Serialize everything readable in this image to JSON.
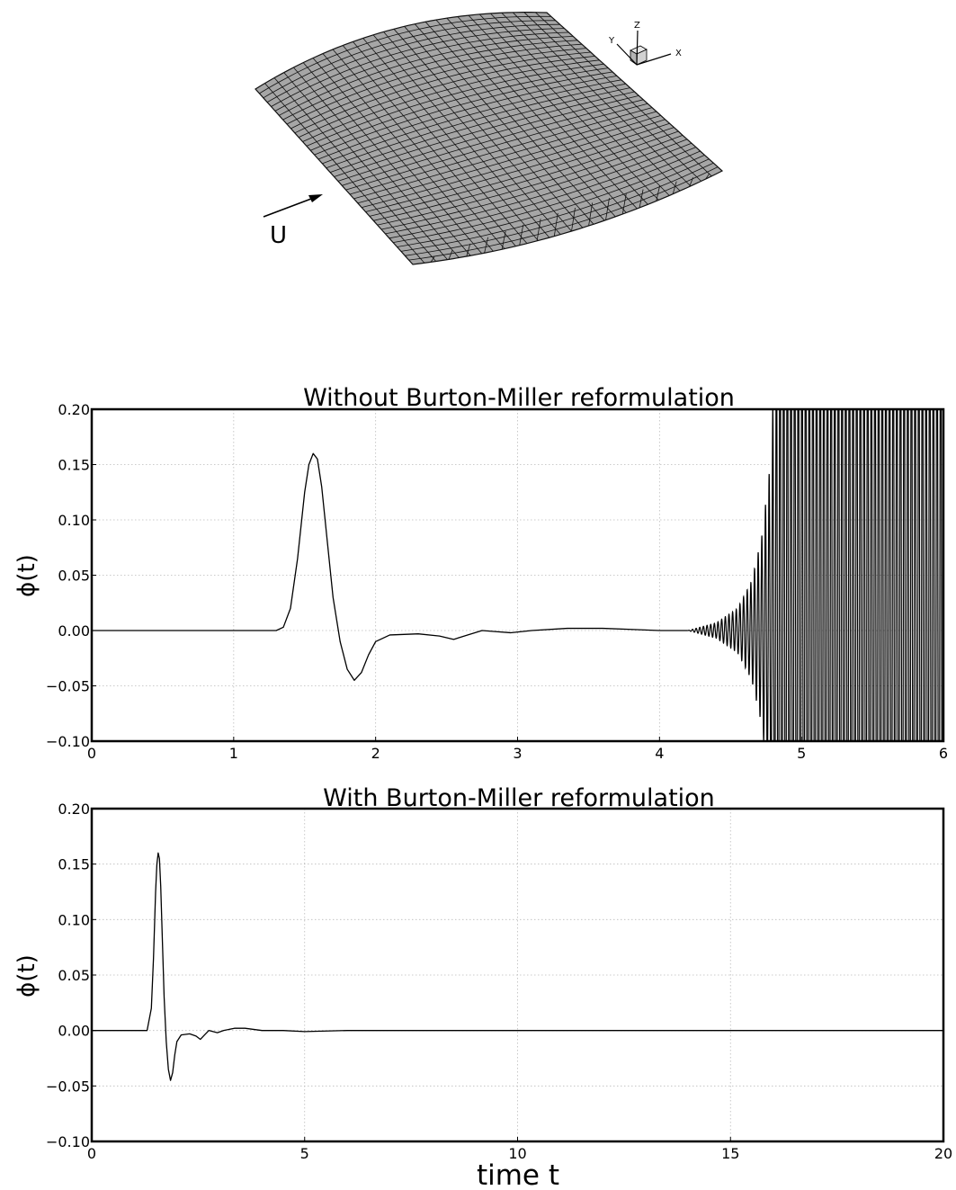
{
  "mesh_figure": {
    "flow_arrow_label": "U",
    "axes_triad": {
      "z_label": "Z",
      "y_label": "Y",
      "x_label": "X"
    },
    "colors": {
      "surface": "#a6a6a6",
      "mesh_line": "#111111"
    }
  },
  "colors": {
    "line": "#000000",
    "grid": "#bbbbbb",
    "frame": "#000000"
  },
  "chart_data": [
    {
      "type": "line",
      "title": "Without Burton-Miller reformulation",
      "xlabel": "",
      "ylabel": "ϕ(t)",
      "xlim": [
        0,
        6
      ],
      "ylim": [
        -0.1,
        0.2
      ],
      "xticks": [
        "0",
        "1",
        "2",
        "3",
        "4",
        "5",
        "6"
      ],
      "yticks": [
        "0.20",
        "0.15",
        "0.10",
        "0.05",
        "0.00",
        "−0.05",
        "−0.10"
      ],
      "grid": true,
      "series": [
        {
          "x": [
            0.0,
            1.0,
            1.3,
            1.35,
            1.4,
            1.45,
            1.5,
            1.53,
            1.56,
            1.59,
            1.62,
            1.66,
            1.7,
            1.75,
            1.8,
            1.85,
            1.9,
            1.95,
            2.0,
            2.1,
            2.3,
            2.45,
            2.55,
            2.65,
            2.75,
            2.85,
            2.95,
            3.1,
            3.35,
            3.6,
            3.8,
            4.0,
            4.2
          ],
          "values": [
            0.0,
            0.0,
            0.0,
            0.003,
            0.02,
            0.065,
            0.125,
            0.15,
            0.16,
            0.155,
            0.13,
            0.08,
            0.03,
            -0.01,
            -0.035,
            -0.045,
            -0.038,
            -0.022,
            -0.01,
            -0.004,
            -0.003,
            -0.005,
            -0.008,
            -0.004,
            0.0,
            -0.001,
            -0.002,
            0.0,
            0.002,
            0.002,
            0.001,
            0.0,
            0.0
          ]
        }
      ],
      "oscillation": {
        "x_start": 4.2,
        "x_end": 6.0,
        "cycles": 70,
        "envelope_x": [
          4.2,
          4.4,
          4.55,
          4.65,
          4.72,
          4.78,
          4.85,
          6.0
        ],
        "envelope_amplitude": [
          0.0,
          0.007,
          0.02,
          0.045,
          0.085,
          0.15,
          0.35,
          0.35
        ]
      }
    },
    {
      "type": "line",
      "title": "With Burton-Miller reformulation",
      "xlabel": "time t",
      "ylabel": "ϕ(t)",
      "xlim": [
        0,
        20
      ],
      "ylim": [
        -0.1,
        0.2
      ],
      "xticks": [
        "0",
        "5",
        "10",
        "15",
        "20"
      ],
      "yticks": [
        "0.20",
        "0.15",
        "0.10",
        "0.05",
        "0.00",
        "−0.05",
        "−0.10"
      ],
      "grid": true,
      "series": [
        {
          "x": [
            0.0,
            1.3,
            1.4,
            1.45,
            1.5,
            1.53,
            1.56,
            1.59,
            1.62,
            1.66,
            1.7,
            1.75,
            1.8,
            1.85,
            1.9,
            1.95,
            2.0,
            2.1,
            2.3,
            2.45,
            2.55,
            2.65,
            2.75,
            2.85,
            2.95,
            3.1,
            3.35,
            3.6,
            3.8,
            4.0,
            4.5,
            5.0,
            6.0,
            20.0
          ],
          "values": [
            0.0,
            0.0,
            0.02,
            0.065,
            0.125,
            0.15,
            0.16,
            0.155,
            0.13,
            0.08,
            0.03,
            -0.01,
            -0.035,
            -0.045,
            -0.038,
            -0.022,
            -0.01,
            -0.004,
            -0.003,
            -0.005,
            -0.008,
            -0.004,
            0.0,
            -0.001,
            -0.002,
            0.0,
            0.002,
            0.002,
            0.001,
            0.0,
            0.0,
            -0.001,
            0.0,
            0.0
          ]
        }
      ]
    }
  ]
}
